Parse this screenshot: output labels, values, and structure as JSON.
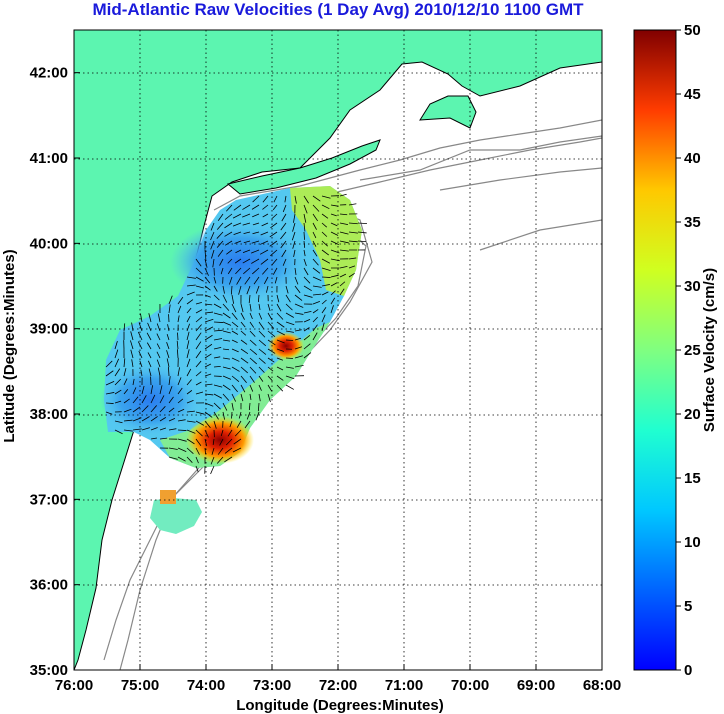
{
  "title": "Mid-Atlantic Raw Velocities (1 Day Avg) 2010/12/10 1100 GMT",
  "map": {
    "xlabel": "Longitude (Degrees:Minutes)",
    "ylabel": "Latitude (Degrees:Minutes)",
    "lon_range": [
      -76,
      -68
    ],
    "lat_range": [
      35,
      42.5
    ],
    "x_ticks": [
      {
        "value": -76,
        "label": "76:00"
      },
      {
        "value": -75,
        "label": "75:00"
      },
      {
        "value": -74,
        "label": "74:00"
      },
      {
        "value": -73,
        "label": "73:00"
      },
      {
        "value": -72,
        "label": "72:00"
      },
      {
        "value": -71,
        "label": "71:00"
      },
      {
        "value": -70,
        "label": "70:00"
      },
      {
        "value": -69,
        "label": "69:00"
      },
      {
        "value": -68,
        "label": "68:00"
      }
    ],
    "y_ticks": [
      {
        "value": 35,
        "label": "35:00"
      },
      {
        "value": 36,
        "label": "36:00"
      },
      {
        "value": 37,
        "label": "37:00"
      },
      {
        "value": 38,
        "label": "38:00"
      },
      {
        "value": 39,
        "label": "39:00"
      },
      {
        "value": 40,
        "label": "40:00"
      },
      {
        "value": 41,
        "label": "41:00"
      },
      {
        "value": 42,
        "label": "42:00"
      }
    ],
    "land_color": "#5cf5b0",
    "coast_color": "#000000",
    "isobath_color": "#888888",
    "grid": true
  },
  "colorbar": {
    "label": "Surface Velocity (cm/s)",
    "min": 0,
    "max": 50,
    "ticks": [
      {
        "value": 0,
        "label": "0"
      },
      {
        "value": 5,
        "label": "5"
      },
      {
        "value": 10,
        "label": "10"
      },
      {
        "value": 15,
        "label": "15"
      },
      {
        "value": 20,
        "label": "20"
      },
      {
        "value": 25,
        "label": "25"
      },
      {
        "value": 30,
        "label": "30"
      },
      {
        "value": 35,
        "label": "35"
      },
      {
        "value": 40,
        "label": "40"
      },
      {
        "value": 45,
        "label": "45"
      },
      {
        "value": 50,
        "label": "50"
      }
    ],
    "colormap": "jet"
  }
}
